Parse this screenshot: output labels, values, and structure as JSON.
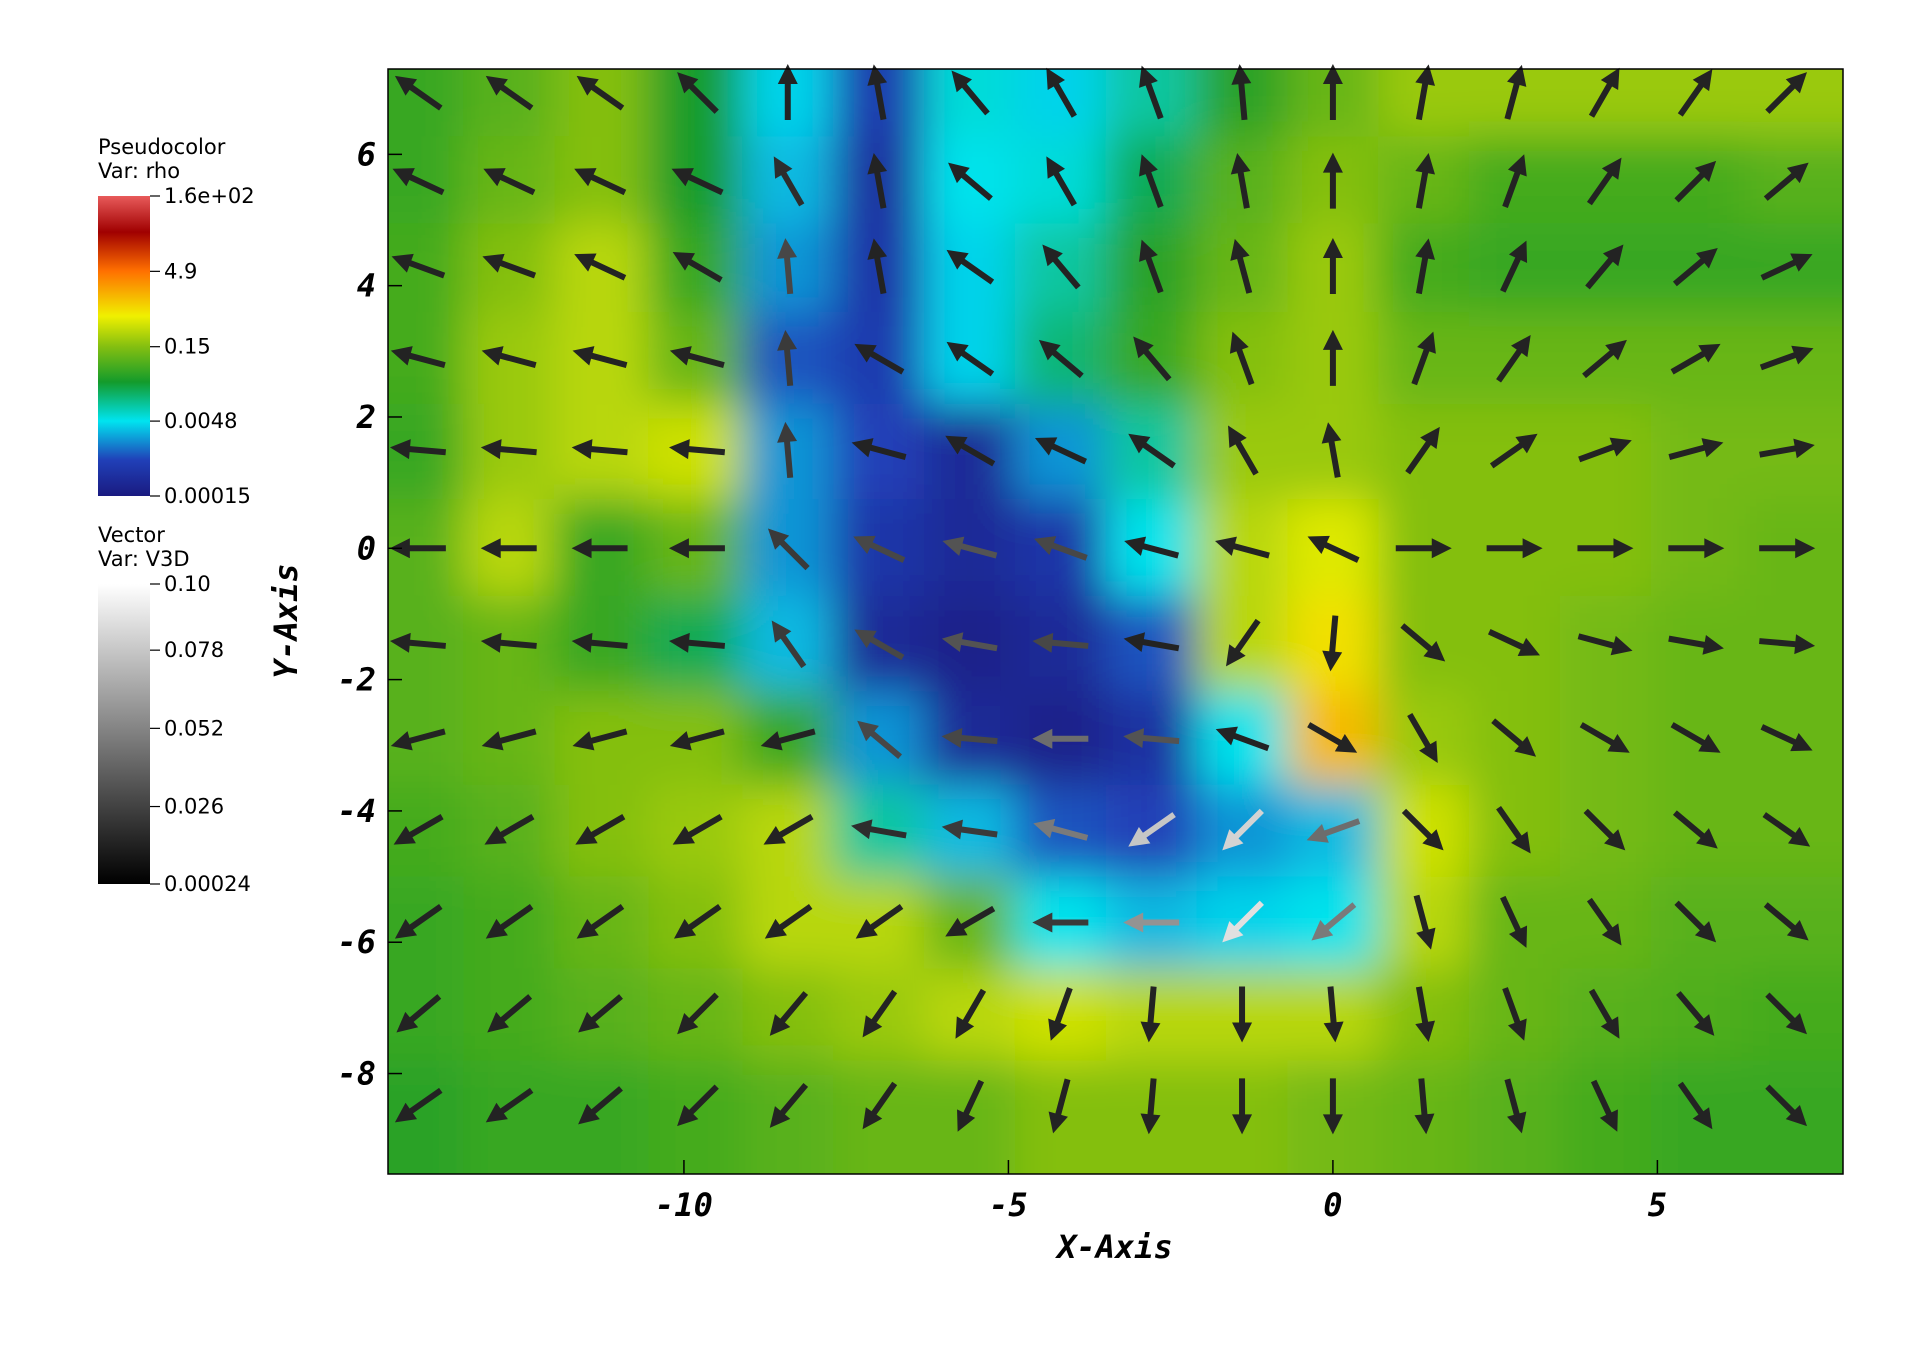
{
  "chart_data": {
    "type": "vector_field",
    "x_label": "X-Axis",
    "y_label": "Y-Axis",
    "xlim": [
      -14.56,
      7.86
    ],
    "ylim": [
      -9.53,
      7.3
    ],
    "xticks": [
      -10,
      -5,
      0,
      5
    ],
    "yticks": [
      -8,
      -6,
      -4,
      -2,
      0,
      2,
      4,
      6
    ],
    "grid_x": [
      -14.1,
      -12.7,
      -11.3,
      -9.8,
      -8.4,
      -7.0,
      -5.6,
      -4.2,
      -2.8,
      -1.4,
      0,
      1.4,
      2.8,
      4.2,
      5.6,
      7.0
    ],
    "grid_y": [
      6.95,
      5.6,
      4.3,
      2.9,
      1.5,
      0,
      -1.45,
      -2.9,
      -4.3,
      -5.7,
      -7.1,
      -8.5
    ],
    "pseudocolor": {
      "title": "Pseudocolor",
      "var": "Var: rho",
      "lim": [
        0.00015,
        160
      ],
      "log": true,
      "ticks": [
        {
          "value": 160,
          "label": "1.6e+02"
        },
        4.9,
        0.15,
        0.0048,
        0.00015
      ],
      "values": [
        [
          0.05,
          0.08,
          0.15,
          0.03,
          0.004,
          0.0006,
          0.006,
          0.004,
          0.01,
          0.04,
          0.1,
          0.2,
          0.2,
          0.2,
          0.2,
          0.2
        ],
        [
          0.05,
          0.1,
          0.15,
          0.03,
          0.003,
          0.0004,
          0.005,
          0.006,
          0.02,
          0.08,
          0.15,
          0.1,
          0.06,
          0.06,
          0.06,
          0.08
        ],
        [
          0.06,
          0.15,
          0.3,
          0.05,
          0.002,
          0.0005,
          0.004,
          0.01,
          0.04,
          0.1,
          0.2,
          0.06,
          0.05,
          0.05,
          0.05,
          0.05
        ],
        [
          0.06,
          0.2,
          0.3,
          0.1,
          0.001,
          0.0006,
          0.004,
          0.015,
          0.05,
          0.15,
          0.2,
          0.1,
          0.1,
          0.1,
          0.1,
          0.1
        ],
        [
          0.05,
          0.2,
          0.3,
          0.4,
          0.002,
          0.0008,
          0.0003,
          0.002,
          0.01,
          0.2,
          0.2,
          0.15,
          0.15,
          0.15,
          0.12,
          0.12
        ],
        [
          0.08,
          0.3,
          0.05,
          0.1,
          0.002,
          0.0005,
          0.0003,
          0.0005,
          0.005,
          0.3,
          0.5,
          0.15,
          0.15,
          0.15,
          0.12,
          0.1
        ],
        [
          0.08,
          0.1,
          0.05,
          0.02,
          0.003,
          0.0003,
          0.0002,
          0.0003,
          0.001,
          0.3,
          0.8,
          0.15,
          0.15,
          0.12,
          0.1,
          0.1
        ],
        [
          0.08,
          0.1,
          0.15,
          0.15,
          0.05,
          0.002,
          0.0003,
          0.0002,
          0.0004,
          0.005,
          1.5,
          0.2,
          0.15,
          0.12,
          0.1,
          0.1
        ],
        [
          0.06,
          0.08,
          0.15,
          0.2,
          0.3,
          0.01,
          0.003,
          0.001,
          0.0008,
          0.002,
          0.003,
          0.4,
          0.15,
          0.12,
          0.1,
          0.1
        ],
        [
          0.05,
          0.06,
          0.1,
          0.15,
          0.3,
          0.3,
          0.1,
          0.005,
          0.003,
          0.004,
          0.005,
          0.3,
          0.1,
          0.1,
          0.08,
          0.08
        ],
        [
          0.05,
          0.06,
          0.08,
          0.1,
          0.15,
          0.2,
          0.3,
          0.4,
          0.3,
          0.3,
          0.3,
          0.15,
          0.1,
          0.08,
          0.07,
          0.06
        ],
        [
          0.04,
          0.05,
          0.05,
          0.06,
          0.08,
          0.1,
          0.1,
          0.15,
          0.15,
          0.15,
          0.12,
          0.1,
          0.08,
          0.06,
          0.05,
          0.05
        ]
      ]
    },
    "vector": {
      "title": "Vector",
      "var": "Var: V3D",
      "lim": [
        0.00024,
        0.1
      ],
      "ticks": [
        {
          "value": 0.1,
          "label": "0.10"
        },
        0.078,
        0.052,
        0.026,
        0.00024
      ],
      "angle": [
        [
          145,
          145,
          145,
          135,
          90,
          100,
          130,
          120,
          110,
          95,
          90,
          80,
          75,
          60,
          55,
          45
        ],
        [
          155,
          155,
          155,
          155,
          120,
          100,
          140,
          120,
          110,
          100,
          90,
          80,
          70,
          55,
          45,
          40
        ],
        [
          160,
          160,
          155,
          150,
          95,
          100,
          145,
          130,
          110,
          105,
          90,
          80,
          65,
          50,
          40,
          25
        ],
        [
          165,
          165,
          165,
          165,
          95,
          150,
          145,
          140,
          130,
          110,
          90,
          70,
          55,
          40,
          30,
          20
        ],
        [
          175,
          175,
          175,
          175,
          95,
          165,
          150,
          155,
          145,
          120,
          100,
          55,
          35,
          20,
          15,
          10
        ],
        [
          180,
          180,
          180,
          180,
          135,
          155,
          165,
          160,
          165,
          165,
          155,
          0,
          0,
          0,
          0,
          0
        ],
        [
          175,
          175,
          175,
          175,
          125,
          150,
          170,
          175,
          170,
          235,
          265,
          320,
          335,
          345,
          350,
          355
        ],
        [
          195,
          195,
          195,
          195,
          195,
          140,
          175,
          180,
          175,
          160,
          330,
          300,
          320,
          330,
          330,
          335
        ],
        [
          210,
          210,
          210,
          210,
          210,
          170,
          172,
          165,
          215,
          225,
          200,
          315,
          305,
          315,
          320,
          325
        ],
        [
          215,
          215,
          215,
          215,
          215,
          215,
          210,
          180,
          180,
          225,
          220,
          285,
          295,
          305,
          315,
          320
        ],
        [
          220,
          220,
          220,
          225,
          230,
          235,
          240,
          250,
          265,
          270,
          275,
          280,
          290,
          300,
          310,
          315
        ],
        [
          215,
          215,
          220,
          225,
          230,
          235,
          245,
          255,
          265,
          270,
          270,
          275,
          285,
          295,
          305,
          315
        ]
      ],
      "magnitude": [
        [
          0.006,
          0.006,
          0.006,
          0.006,
          0.006,
          0.006,
          0.006,
          0.006,
          0.006,
          0.006,
          0.006,
          0.006,
          0.006,
          0.006,
          0.006,
          0.006
        ],
        [
          0.006,
          0.006,
          0.006,
          0.006,
          0.01,
          0.006,
          0.006,
          0.006,
          0.006,
          0.006,
          0.006,
          0.006,
          0.006,
          0.006,
          0.006,
          0.006
        ],
        [
          0.006,
          0.006,
          0.006,
          0.006,
          0.02,
          0.006,
          0.006,
          0.006,
          0.006,
          0.006,
          0.006,
          0.006,
          0.006,
          0.006,
          0.006,
          0.006
        ],
        [
          0.006,
          0.006,
          0.006,
          0.006,
          0.015,
          0.006,
          0.006,
          0.006,
          0.006,
          0.006,
          0.006,
          0.006,
          0.006,
          0.006,
          0.006,
          0.006
        ],
        [
          0.006,
          0.006,
          0.006,
          0.006,
          0.015,
          0.006,
          0.006,
          0.006,
          0.006,
          0.006,
          0.006,
          0.006,
          0.006,
          0.006,
          0.006,
          0.006
        ],
        [
          0.006,
          0.006,
          0.006,
          0.006,
          0.015,
          0.02,
          0.025,
          0.02,
          0.006,
          0.006,
          0.006,
          0.006,
          0.006,
          0.006,
          0.006,
          0.006
        ],
        [
          0.006,
          0.006,
          0.006,
          0.006,
          0.015,
          0.02,
          0.025,
          0.02,
          0.006,
          0.006,
          0.006,
          0.006,
          0.006,
          0.006,
          0.006,
          0.006
        ],
        [
          0.006,
          0.006,
          0.006,
          0.006,
          0.006,
          0.02,
          0.02,
          0.035,
          0.025,
          0.006,
          0.006,
          0.006,
          0.006,
          0.006,
          0.006,
          0.006
        ],
        [
          0.006,
          0.006,
          0.006,
          0.006,
          0.006,
          0.01,
          0.015,
          0.04,
          0.07,
          0.075,
          0.035,
          0.006,
          0.006,
          0.006,
          0.006,
          0.006
        ],
        [
          0.006,
          0.006,
          0.006,
          0.006,
          0.006,
          0.006,
          0.006,
          0.015,
          0.05,
          0.08,
          0.04,
          0.006,
          0.006,
          0.006,
          0.006,
          0.006
        ],
        [
          0.006,
          0.006,
          0.006,
          0.006,
          0.006,
          0.006,
          0.006,
          0.006,
          0.006,
          0.006,
          0.006,
          0.006,
          0.006,
          0.006,
          0.006,
          0.006
        ],
        [
          0.006,
          0.006,
          0.006,
          0.006,
          0.006,
          0.006,
          0.006,
          0.006,
          0.006,
          0.006,
          0.006,
          0.006,
          0.006,
          0.006,
          0.006,
          0.006
        ]
      ]
    }
  }
}
